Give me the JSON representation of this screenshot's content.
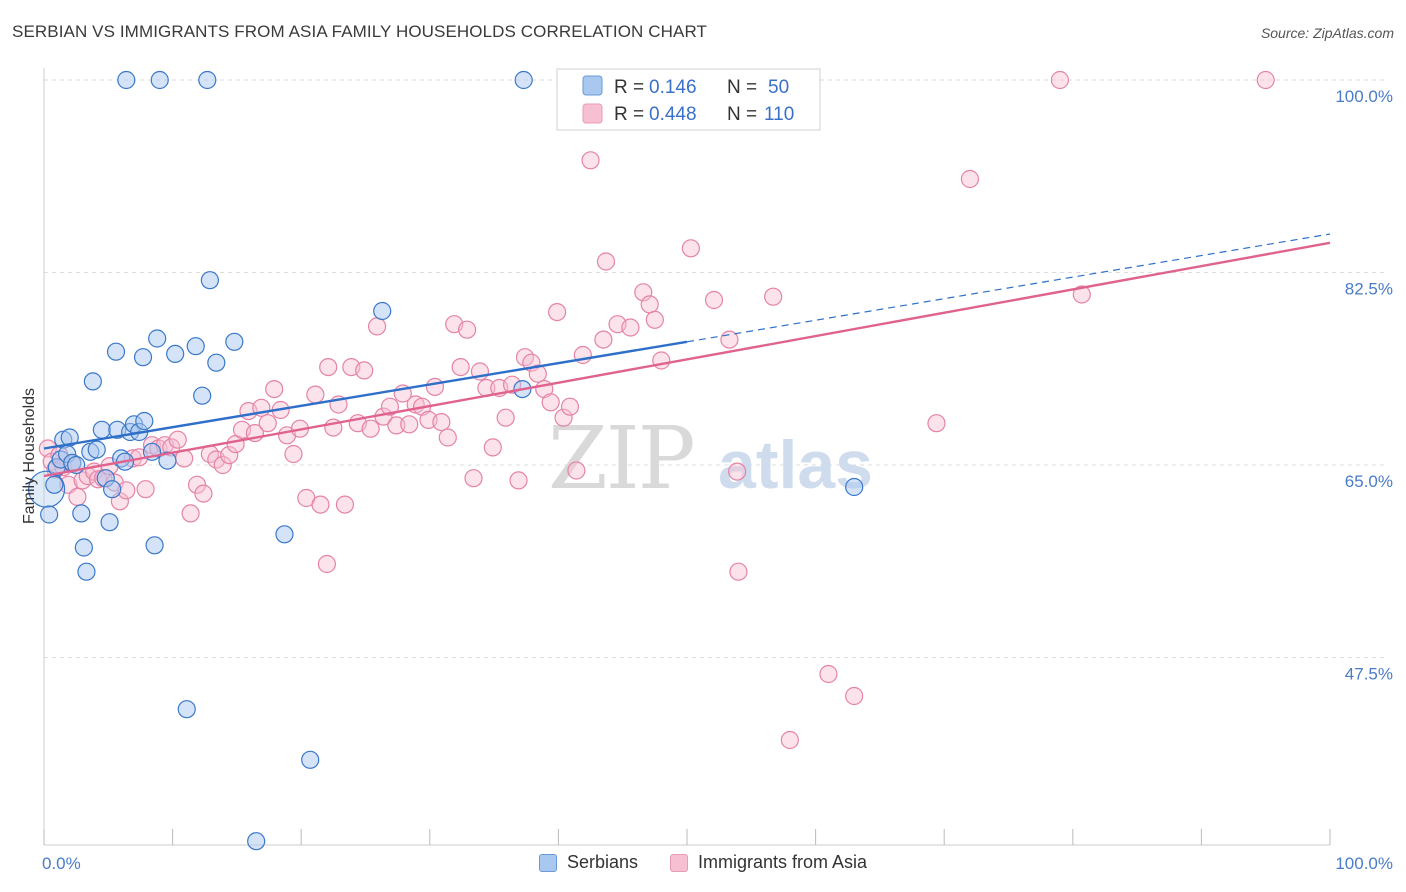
{
  "header": {
    "title": "SERBIAN VS IMMIGRANTS FROM ASIA FAMILY HOUSEHOLDS CORRELATION CHART",
    "source": "Source: ZipAtlas.com"
  },
  "watermark": {
    "zip": "ZIP",
    "atlas": "atlas"
  },
  "legend_box": {
    "rows": [
      {
        "r_label": "R =",
        "r_value": "0.146",
        "n_label": "N =",
        "n_value": "50"
      },
      {
        "r_label": "R =",
        "r_value": "0.448",
        "n_label": "N =",
        "n_value": "110"
      }
    ]
  },
  "colors": {
    "serbians_fill": "#a9c8ef",
    "serbians_stroke": "#3a78c9",
    "serbians_line": "#2e6fc9",
    "asia_fill": "#f7bfd2",
    "asia_stroke": "#e583a6",
    "asia_line": "#e0628f",
    "tick_text": "#4a7cc7",
    "grid": "#dddddd"
  },
  "chart_data": {
    "type": "scatter",
    "title": "SERBIAN VS IMMIGRANTS FROM ASIA FAMILY HOUSEHOLDS CORRELATION CHART",
    "xlabel": "",
    "ylabel": "Family Households",
    "xlim": [
      0,
      100
    ],
    "ylim": [
      31,
      101
    ],
    "x_tick_labels": [
      "0.0%",
      "100.0%"
    ],
    "y_ticks": [
      {
        "value": 47.5,
        "label": "47.5%"
      },
      {
        "value": 65.0,
        "label": "65.0%"
      },
      {
        "value": 82.5,
        "label": "82.5%"
      },
      {
        "value": 100.0,
        "label": "100.0%"
      }
    ],
    "x_minor_ticks": [
      0,
      10,
      20,
      30,
      40,
      50,
      60,
      70,
      80,
      90,
      100
    ],
    "legend_entries": [
      "Serbians",
      "Immigrants from Asia"
    ],
    "series": [
      {
        "name": "Serbians",
        "r": 0.146,
        "n": 50,
        "trend": {
          "x0": 0,
          "y0": 66.5,
          "x1": 50,
          "y1": 76.2,
          "dash_to_x": 100,
          "dash_to_y": 86.0
        },
        "points": [
          [
            0.2,
            62.8
          ],
          [
            0.4,
            60.5
          ],
          [
            0.8,
            63.2
          ],
          [
            1.0,
            64.8
          ],
          [
            1.3,
            65.5
          ],
          [
            1.5,
            67.3
          ],
          [
            1.8,
            66.0
          ],
          [
            2.0,
            67.5
          ],
          [
            2.2,
            65.2
          ],
          [
            2.5,
            65.0
          ],
          [
            2.9,
            60.6
          ],
          [
            3.1,
            57.5
          ],
          [
            3.3,
            55.3
          ],
          [
            3.6,
            66.2
          ],
          [
            3.8,
            72.6
          ],
          [
            4.1,
            66.4
          ],
          [
            4.5,
            68.2
          ],
          [
            4.8,
            63.8
          ],
          [
            5.1,
            59.8
          ],
          [
            5.3,
            62.8
          ],
          [
            5.7,
            68.2
          ],
          [
            5.6,
            75.3
          ],
          [
            6.0,
            65.6
          ],
          [
            6.3,
            65.3
          ],
          [
            6.7,
            68.0
          ],
          [
            7.0,
            68.7
          ],
          [
            7.4,
            68.0
          ],
          [
            7.7,
            74.8
          ],
          [
            7.8,
            69.0
          ],
          [
            8.4,
            66.2
          ],
          [
            8.6,
            57.7
          ],
          [
            8.8,
            76.5
          ],
          [
            9.6,
            65.4
          ],
          [
            10.2,
            75.1
          ],
          [
            11.1,
            42.8
          ],
          [
            11.8,
            75.8
          ],
          [
            12.3,
            71.3
          ],
          [
            12.9,
            81.8
          ],
          [
            13.4,
            74.3
          ],
          [
            14.8,
            76.2
          ],
          [
            16.5,
            30.8
          ],
          [
            18.7,
            58.7
          ],
          [
            20.7,
            38.2
          ],
          [
            26.3,
            79.0
          ],
          [
            37.2,
            71.9
          ],
          [
            63.0,
            63.0
          ],
          [
            6.4,
            100.0
          ],
          [
            9.0,
            100.0
          ],
          [
            12.7,
            100.0
          ],
          [
            37.3,
            100.0
          ]
        ]
      },
      {
        "name": "Immigrants from Asia",
        "r": 0.448,
        "n": 110,
        "trend": {
          "x0": 0,
          "y0": 64.0,
          "x1": 100,
          "y1": 85.2
        },
        "points": [
          [
            0.3,
            66.5
          ],
          [
            0.6,
            65.3
          ],
          [
            0.9,
            64.6
          ],
          [
            1.2,
            65.9
          ],
          [
            1.5,
            64.8
          ],
          [
            1.9,
            63.2
          ],
          [
            2.2,
            65.1
          ],
          [
            2.6,
            62.1
          ],
          [
            3.0,
            63.6
          ],
          [
            3.4,
            64.0
          ],
          [
            3.9,
            64.4
          ],
          [
            4.2,
            63.7
          ],
          [
            4.6,
            63.8
          ],
          [
            5.1,
            64.9
          ],
          [
            5.5,
            63.4
          ],
          [
            5.9,
            61.7
          ],
          [
            6.4,
            62.7
          ],
          [
            6.9,
            65.6
          ],
          [
            7.4,
            65.7
          ],
          [
            7.9,
            62.8
          ],
          [
            8.4,
            66.8
          ],
          [
            8.9,
            66.5
          ],
          [
            9.4,
            66.8
          ],
          [
            9.9,
            66.6
          ],
          [
            10.4,
            67.3
          ],
          [
            10.9,
            65.6
          ],
          [
            11.4,
            60.6
          ],
          [
            11.9,
            63.2
          ],
          [
            12.4,
            62.4
          ],
          [
            12.9,
            66.0
          ],
          [
            13.4,
            65.5
          ],
          [
            13.9,
            65.0
          ],
          [
            14.4,
            65.9
          ],
          [
            14.9,
            66.9
          ],
          [
            15.4,
            68.2
          ],
          [
            15.9,
            69.9
          ],
          [
            16.4,
            67.9
          ],
          [
            16.9,
            70.2
          ],
          [
            17.4,
            68.8
          ],
          [
            17.9,
            71.9
          ],
          [
            18.4,
            70.0
          ],
          [
            18.9,
            67.7
          ],
          [
            19.4,
            66.0
          ],
          [
            19.9,
            68.3
          ],
          [
            20.4,
            62.0
          ],
          [
            21.1,
            71.4
          ],
          [
            21.5,
            61.4
          ],
          [
            22.1,
            73.9
          ],
          [
            22.5,
            68.4
          ],
          [
            22.9,
            70.5
          ],
          [
            23.4,
            61.4
          ],
          [
            23.9,
            73.9
          ],
          [
            24.4,
            68.8
          ],
          [
            24.9,
            73.6
          ],
          [
            25.4,
            68.3
          ],
          [
            25.9,
            77.6
          ],
          [
            26.4,
            69.4
          ],
          [
            26.9,
            70.3
          ],
          [
            27.4,
            68.6
          ],
          [
            27.9,
            71.5
          ],
          [
            28.4,
            68.7
          ],
          [
            28.9,
            70.5
          ],
          [
            29.4,
            70.3
          ],
          [
            29.9,
            69.1
          ],
          [
            30.4,
            72.1
          ],
          [
            30.9,
            68.9
          ],
          [
            31.4,
            67.5
          ],
          [
            31.9,
            77.8
          ],
          [
            32.4,
            73.9
          ],
          [
            32.9,
            77.3
          ],
          [
            33.4,
            63.8
          ],
          [
            33.9,
            73.5
          ],
          [
            34.4,
            72.0
          ],
          [
            34.9,
            66.6
          ],
          [
            35.4,
            72.0
          ],
          [
            35.9,
            69.3
          ],
          [
            36.4,
            72.3
          ],
          [
            36.9,
            63.6
          ],
          [
            37.4,
            74.8
          ],
          [
            37.9,
            74.3
          ],
          [
            38.4,
            73.3
          ],
          [
            38.9,
            71.9
          ],
          [
            39.4,
            70.7
          ],
          [
            39.9,
            78.9
          ],
          [
            40.4,
            69.3
          ],
          [
            40.9,
            70.3
          ],
          [
            41.4,
            64.5
          ],
          [
            41.9,
            75.0
          ],
          [
            42.5,
            92.7
          ],
          [
            43.5,
            76.4
          ],
          [
            43.7,
            83.5
          ],
          [
            44.6,
            77.8
          ],
          [
            45.6,
            77.5
          ],
          [
            46.6,
            80.7
          ],
          [
            47.1,
            79.6
          ],
          [
            47.5,
            78.2
          ],
          [
            48.0,
            74.5
          ],
          [
            50.3,
            84.7
          ],
          [
            52.1,
            80.0
          ],
          [
            53.3,
            76.4
          ],
          [
            53.9,
            64.4
          ],
          [
            56.7,
            80.3
          ],
          [
            69.4,
            68.8
          ],
          [
            80.7,
            80.5
          ],
          [
            22.0,
            56.0
          ],
          [
            54.0,
            55.3
          ],
          [
            61.0,
            46.0
          ],
          [
            63.0,
            44.0
          ],
          [
            58.0,
            40.0
          ],
          [
            79.0,
            100.0
          ],
          [
            72.0,
            91.0
          ],
          [
            95.0,
            100.0
          ]
        ]
      }
    ]
  },
  "bottom_legend": {
    "items": [
      {
        "label": "Serbians"
      },
      {
        "label": "Immigrants from Asia"
      }
    ]
  }
}
